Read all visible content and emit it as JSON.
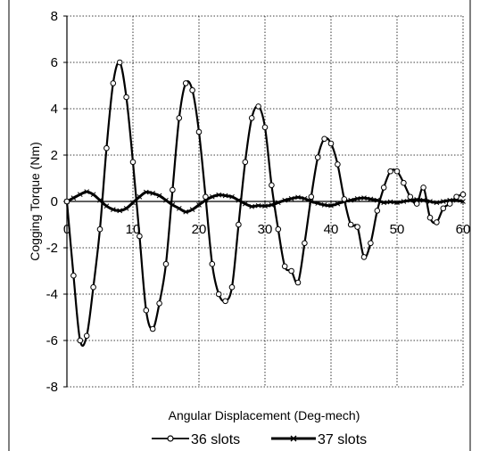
{
  "chart_data": {
    "type": "line",
    "title": "",
    "xlabel": "Angular Displacement (Deg-mech)",
    "ylabel": "Cogging Torque (Nm)",
    "xlim": [
      0,
      60
    ],
    "ylim": [
      -8,
      8
    ],
    "xticks": [
      "0",
      "10",
      "20",
      "30",
      "40",
      "50",
      "60"
    ],
    "yticks": [
      "8",
      "6",
      "4",
      "2",
      "0",
      "-2",
      "-4",
      "-6",
      "-8"
    ],
    "grid": true,
    "legend": "bottom",
    "series": [
      {
        "name": "36 slots",
        "marker": "circle",
        "color": "#000000",
        "x": [
          0,
          1,
          2,
          3,
          4,
          5,
          6,
          7,
          8,
          9,
          10,
          11,
          12,
          13,
          14,
          15,
          16,
          17,
          18,
          19,
          20,
          21,
          22,
          23,
          24,
          25,
          26,
          27,
          28,
          29,
          30,
          31,
          32,
          33,
          34,
          35,
          36,
          37,
          38,
          39,
          40,
          41,
          42,
          43,
          44,
          45,
          46,
          47,
          48,
          49,
          50,
          51,
          52,
          53,
          54,
          55,
          56,
          57,
          58,
          59,
          60
        ],
        "y": [
          0.0,
          -3.2,
          -6.0,
          -5.8,
          -3.7,
          -1.2,
          2.3,
          5.1,
          6.0,
          4.5,
          1.7,
          -1.5,
          -4.7,
          -5.5,
          -4.4,
          -2.7,
          0.5,
          3.6,
          5.1,
          4.8,
          3.0,
          0.2,
          -2.7,
          -4.0,
          -4.3,
          -3.7,
          -1.0,
          1.7,
          3.6,
          4.1,
          3.2,
          0.7,
          -1.2,
          -2.8,
          -3.0,
          -3.5,
          -1.8,
          0.2,
          1.9,
          2.7,
          2.5,
          1.6,
          0.1,
          -1.0,
          -1.1,
          -2.4,
          -1.8,
          -0.4,
          0.6,
          1.3,
          1.3,
          0.8,
          0.2,
          -0.1,
          0.6,
          -0.7,
          -0.9,
          -0.3,
          -0.1,
          0.2,
          0.3
        ]
      },
      {
        "name": "37 slots",
        "marker": "x",
        "color": "#000000",
        "x": [
          0,
          1,
          2,
          3,
          4,
          5,
          6,
          7,
          8,
          9,
          10,
          11,
          12,
          13,
          14,
          15,
          16,
          17,
          18,
          19,
          20,
          21,
          22,
          23,
          24,
          25,
          26,
          27,
          28,
          29,
          30,
          31,
          32,
          33,
          34,
          35,
          36,
          37,
          38,
          39,
          40,
          41,
          42,
          43,
          44,
          45,
          46,
          47,
          48,
          49,
          50,
          51,
          52,
          53,
          54,
          55,
          56,
          57,
          58,
          59,
          60
        ],
        "y": [
          0.0,
          0.15,
          0.3,
          0.42,
          0.3,
          0.05,
          -0.2,
          -0.35,
          -0.4,
          -0.3,
          -0.05,
          0.2,
          0.4,
          0.35,
          0.25,
          0.05,
          -0.15,
          -0.3,
          -0.45,
          -0.35,
          -0.15,
          0.05,
          0.2,
          0.28,
          0.25,
          0.2,
          0.05,
          -0.1,
          -0.22,
          -0.18,
          -0.2,
          -0.15,
          -0.05,
          0.05,
          0.12,
          0.18,
          0.12,
          0.0,
          -0.08,
          -0.15,
          -0.18,
          -0.1,
          0.0,
          0.05,
          0.12,
          0.15,
          0.1,
          0.05,
          -0.05,
          -0.02,
          -0.05,
          0.0,
          0.05,
          0.08,
          0.05,
          0.0,
          -0.05,
          0.0,
          0.05,
          0.05,
          0.0
        ]
      }
    ]
  }
}
